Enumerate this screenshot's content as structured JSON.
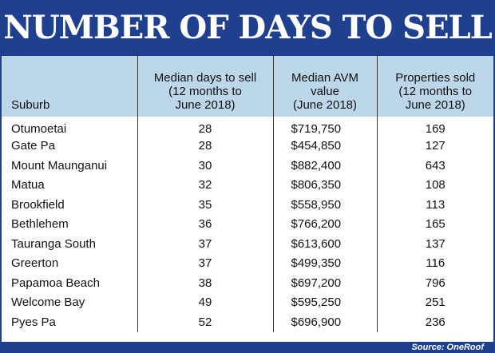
{
  "title": "NUMBER OF DAYS TO SELL",
  "source": "Source: OneRoof",
  "chart_data": {
    "type": "table",
    "title": "NUMBER OF DAYS TO SELL",
    "columns": [
      "Suburb",
      "Median days to sell (12 months to June 2018)",
      "Median AVM value (June 2018)",
      "Properties sold (12 months to June 2018)"
    ],
    "header_lines": [
      [
        "Suburb"
      ],
      [
        "Median days to sell",
        "(12 months to",
        "June 2018)"
      ],
      [
        "Median AVM",
        "value",
        "(June 2018)"
      ],
      [
        "Properties sold",
        "(12 months to",
        "June 2018)"
      ]
    ],
    "rows": [
      [
        "Otumoetai",
        "28",
        "$719,750",
        "169"
      ],
      [
        "Gate Pa",
        "28",
        "$454,850",
        "127"
      ],
      [
        "Mount Maunganui",
        "30",
        "$882,400",
        "643"
      ],
      [
        "Matua",
        "32",
        "$806,350",
        "108"
      ],
      [
        "Brookfield",
        "35",
        "$558,950",
        "113"
      ],
      [
        "Bethlehem",
        "36",
        "$766,200",
        "165"
      ],
      [
        "Tauranga South",
        "37",
        "$613,600",
        "137"
      ],
      [
        "Greerton",
        "37",
        "$499,350",
        "116"
      ],
      [
        "Papamoa Beach",
        "38",
        "$697,200",
        "796"
      ],
      [
        "Welcome Bay",
        "49",
        "$595,250",
        "251"
      ],
      [
        "Pyes Pa",
        "52",
        "$696,900",
        "236"
      ]
    ]
  },
  "colors": {
    "brand_navy": "#1f3f8f",
    "header_blue": "#bcd6ea",
    "text": "#111111"
  }
}
